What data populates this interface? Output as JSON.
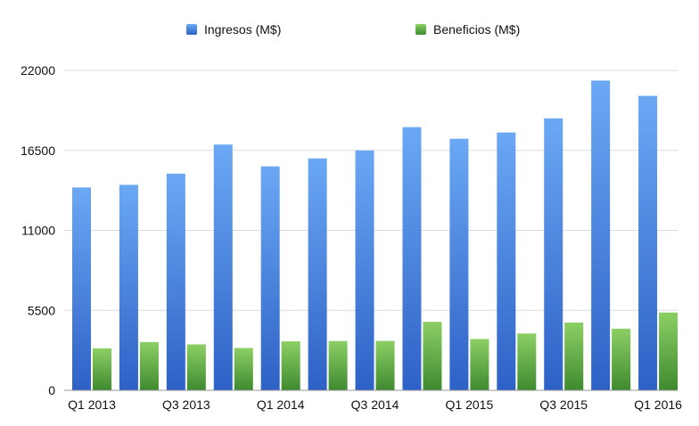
{
  "chart_data": {
    "type": "bar",
    "categories": [
      "Q1 2013",
      "Q2 2013",
      "Q3 2013",
      "Q4 2013",
      "Q1 2014",
      "Q2 2014",
      "Q3 2014",
      "Q4 2014",
      "Q1 2015",
      "Q2 2015",
      "Q3 2015",
      "Q4 2015",
      "Q1 2016"
    ],
    "x_tick_labels": [
      "Q1 2013",
      "Q3 2013",
      "Q1 2014",
      "Q3 2014",
      "Q1 2015",
      "Q3 2015",
      "Q1 2016"
    ],
    "series": [
      {
        "name": "Ingresos (M$)",
        "color": "#4d86e3",
        "values": [
          13950,
          14130,
          14900,
          16900,
          15400,
          15950,
          16500,
          18100,
          17300,
          17730,
          18700,
          21300,
          20250
        ]
      },
      {
        "name": "Beneficios (M$)",
        "color": "#5daa42",
        "values": [
          2890,
          3320,
          3160,
          2910,
          3370,
          3390,
          3400,
          4710,
          3530,
          3910,
          4660,
          4240,
          5350
        ]
      }
    ],
    "y_ticks": [
      0,
      5500,
      11000,
      16500,
      22000
    ],
    "ylim": [
      0,
      22000
    ],
    "grid": true,
    "legend_position": "top"
  }
}
